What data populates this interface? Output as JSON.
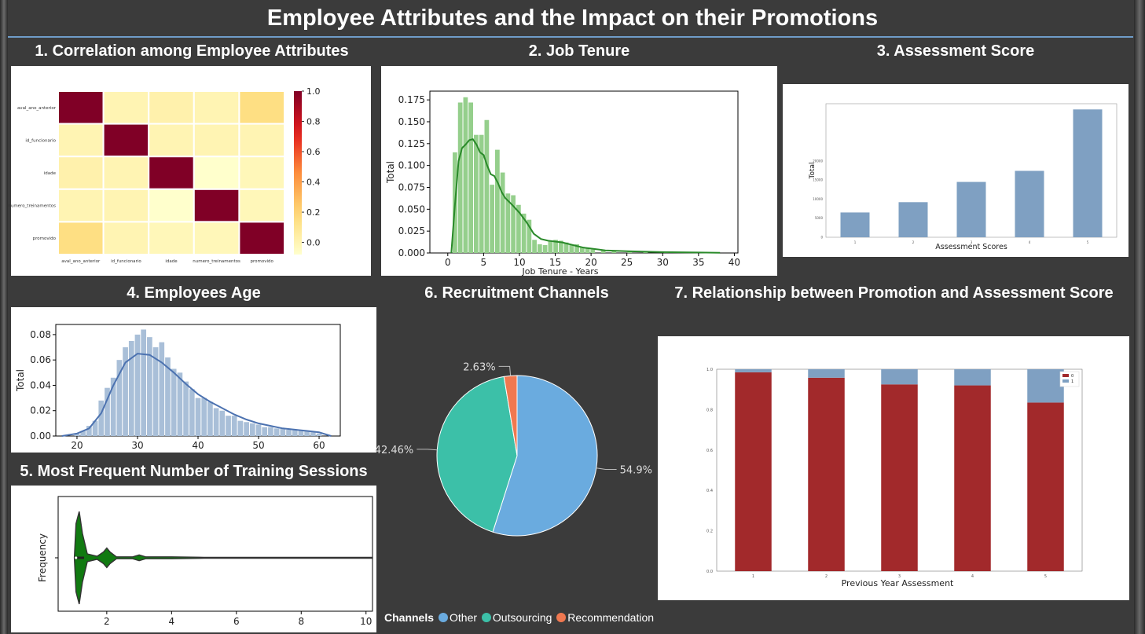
{
  "title": "Employee Attributes and the Impact on their Promotions",
  "panels": {
    "p1": "1. Correlation among Employee Attributes",
    "p2": "2. Job Tenure",
    "p3": "3. Assessment Score",
    "p4": "4. Employees Age",
    "p5": "5. Most Frequent Number of Training Sessions",
    "p6": "6. Recruitment Channels",
    "p7": "7. Relationship between Promotion and Assessment Score"
  },
  "colors": {
    "background": "#3b3b3b",
    "accent_line": "#6f9cc8",
    "heatmap_high": "#800026",
    "heatmap_low": "#ffffcc",
    "tenure_green": "#2a8a2a",
    "age_blue": "#4c72b0",
    "assessment_bar": "#7fa0c2",
    "promo_red": "#a2292b",
    "promo_blue": "#7fa0c2",
    "pie_other": "#6aabdf",
    "pie_outsourcing": "#3cc0a8",
    "pie_recommendation": "#f07850"
  },
  "chart_data": [
    {
      "id": "heatmap",
      "type": "heatmap",
      "row_labels": [
        "aval_ano_anterior",
        "id_funcionario",
        "idade",
        "numero_treinamentos",
        "promovido"
      ],
      "col_labels": [
        "aval_ano_anterior",
        "id_funcionario",
        "idade",
        "numero_treinamentos",
        "promovido"
      ],
      "values": [
        [
          1.0,
          0.0,
          0.02,
          0.0,
          0.15
        ],
        [
          0.0,
          1.0,
          0.0,
          0.0,
          0.0
        ],
        [
          0.02,
          0.0,
          1.0,
          -0.08,
          -0.02
        ],
        [
          0.0,
          0.0,
          -0.08,
          1.0,
          -0.02
        ],
        [
          0.15,
          0.0,
          -0.02,
          -0.02,
          1.0
        ]
      ],
      "colorbar_ticks": [
        "1.0",
        "0.8",
        "0.6",
        "0.4",
        "0.2",
        "0.0"
      ],
      "colorbar_range": [
        -0.08,
        1.0
      ]
    },
    {
      "id": "tenure",
      "type": "bar",
      "xlabel": "Job Tenure - Years",
      "ylabel": "Total",
      "xlim": [
        -2.5,
        40.5
      ],
      "ylim": [
        0,
        0.185
      ],
      "xticks": [
        "0",
        "5",
        "10",
        "15",
        "20",
        "25",
        "30",
        "35",
        "40"
      ],
      "yticks": [
        "0.000",
        "0.025",
        "0.050",
        "0.075",
        "0.100",
        "0.125",
        "0.150",
        "0.175"
      ],
      "bin_width": 0.74,
      "bins": [
        [
          1.0,
          0.115
        ],
        [
          1.74,
          0.172
        ],
        [
          2.48,
          0.178
        ],
        [
          3.22,
          0.172
        ],
        [
          3.96,
          0.135
        ],
        [
          4.7,
          0.135
        ],
        [
          5.44,
          0.152
        ],
        [
          6.18,
          0.078
        ],
        [
          6.92,
          0.118
        ],
        [
          7.66,
          0.092
        ],
        [
          8.4,
          0.068
        ],
        [
          9.14,
          0.066
        ],
        [
          9.88,
          0.055
        ],
        [
          10.62,
          0.045
        ],
        [
          11.36,
          0.038
        ],
        [
          12.1,
          0.015
        ],
        [
          12.84,
          0.01
        ],
        [
          13.58,
          0.009
        ],
        [
          14.32,
          0.013
        ],
        [
          15.06,
          0.015
        ],
        [
          15.8,
          0.014
        ],
        [
          16.54,
          0.012
        ],
        [
          17.28,
          0.009
        ],
        [
          18.02,
          0.01
        ],
        [
          18.76,
          0.007
        ],
        [
          19.5,
          0.006
        ],
        [
          20.24,
          0.004
        ],
        [
          21.7,
          0.003
        ],
        [
          23.2,
          0.002
        ],
        [
          25.4,
          0.0015
        ],
        [
          27.6,
          0.001
        ],
        [
          30.5,
          0.0008
        ],
        [
          33.4,
          0.0005
        ],
        [
          36.3,
          0.0004
        ]
      ],
      "kde": [
        [
          0.5,
          0.0
        ],
        [
          1.0,
          0.055
        ],
        [
          1.5,
          0.105
        ],
        [
          2.0,
          0.12
        ],
        [
          2.5,
          0.124
        ],
        [
          3.0,
          0.129
        ],
        [
          3.5,
          0.13
        ],
        [
          4.0,
          0.124
        ],
        [
          4.5,
          0.115
        ],
        [
          5.0,
          0.112
        ],
        [
          5.5,
          0.1
        ],
        [
          6.0,
          0.09
        ],
        [
          6.5,
          0.088
        ],
        [
          7.0,
          0.08
        ],
        [
          7.5,
          0.07
        ],
        [
          8.0,
          0.063
        ],
        [
          9.0,
          0.055
        ],
        [
          10.0,
          0.046
        ],
        [
          11.0,
          0.035
        ],
        [
          12.0,
          0.022
        ],
        [
          13.0,
          0.016
        ],
        [
          14.0,
          0.014
        ],
        [
          15.0,
          0.013
        ],
        [
          16.0,
          0.012
        ],
        [
          17.0,
          0.01
        ],
        [
          18.0,
          0.008
        ],
        [
          19.0,
          0.006
        ],
        [
          20.0,
          0.005
        ],
        [
          22.0,
          0.003
        ],
        [
          25.0,
          0.002
        ],
        [
          30.0,
          0.001
        ],
        [
          35.0,
          0.0005
        ],
        [
          38.0,
          0.0003
        ]
      ]
    },
    {
      "id": "assessment",
      "type": "bar",
      "xlabel": "Assessment Scores",
      "ylabel": "Total",
      "categories": [
        "1",
        "2",
        "3",
        "4",
        "5"
      ],
      "values": [
        6500,
        9200,
        14500,
        17400,
        33500
      ],
      "ylim": [
        0,
        35000
      ],
      "yticks": [
        "0",
        "5000",
        "10000",
        "15000",
        "20000"
      ]
    },
    {
      "id": "age",
      "type": "bar",
      "xlabel": "",
      "ylabel": "Total",
      "xlim": [
        16.5,
        63.5
      ],
      "ylim": [
        0,
        0.088
      ],
      "xticks": [
        "20",
        "30",
        "40",
        "50",
        "60"
      ],
      "yticks": [
        "0.00",
        "0.02",
        "0.04",
        "0.06",
        "0.08"
      ],
      "bin_width": 1.0,
      "bins": [
        [
          20,
          0.002
        ],
        [
          21,
          0.004
        ],
        [
          22,
          0.008
        ],
        [
          23,
          0.012
        ],
        [
          24,
          0.028
        ],
        [
          25,
          0.038
        ],
        [
          26,
          0.046
        ],
        [
          27,
          0.06
        ],
        [
          28,
          0.07
        ],
        [
          29,
          0.075
        ],
        [
          30,
          0.08
        ],
        [
          31,
          0.084
        ],
        [
          32,
          0.078
        ],
        [
          33,
          0.07
        ],
        [
          34,
          0.074
        ],
        [
          35,
          0.062
        ],
        [
          36,
          0.053
        ],
        [
          37,
          0.05
        ],
        [
          38,
          0.043
        ],
        [
          39,
          0.037
        ],
        [
          40,
          0.03
        ],
        [
          41,
          0.03
        ],
        [
          42,
          0.027
        ],
        [
          43,
          0.022
        ],
        [
          44,
          0.02
        ],
        [
          45,
          0.016
        ],
        [
          46,
          0.016
        ],
        [
          47,
          0.012
        ],
        [
          48,
          0.011
        ],
        [
          49,
          0.01
        ],
        [
          50,
          0.009
        ],
        [
          51,
          0.007
        ],
        [
          52,
          0.007
        ],
        [
          53,
          0.006
        ],
        [
          54,
          0.006
        ],
        [
          55,
          0.005
        ],
        [
          56,
          0.005
        ],
        [
          57,
          0.004
        ],
        [
          58,
          0.004
        ],
        [
          59,
          0.003
        ],
        [
          60,
          0.002
        ]
      ],
      "kde": [
        [
          17.5,
          0.0
        ],
        [
          20,
          0.002
        ],
        [
          22,
          0.006
        ],
        [
          24,
          0.018
        ],
        [
          26,
          0.04
        ],
        [
          28,
          0.058
        ],
        [
          30,
          0.065
        ],
        [
          32,
          0.064
        ],
        [
          34,
          0.058
        ],
        [
          36,
          0.05
        ],
        [
          38,
          0.041
        ],
        [
          40,
          0.033
        ],
        [
          42,
          0.027
        ],
        [
          44,
          0.022
        ],
        [
          46,
          0.017
        ],
        [
          48,
          0.013
        ],
        [
          50,
          0.01
        ],
        [
          52,
          0.008
        ],
        [
          54,
          0.006
        ],
        [
          56,
          0.005
        ],
        [
          58,
          0.004
        ],
        [
          60,
          0.003
        ],
        [
          62,
          0.0
        ]
      ]
    },
    {
      "id": "training",
      "type": "violin",
      "ylabel": "Frequency",
      "xlim": [
        0.5,
        10.2
      ],
      "xticks": [
        "2",
        "4",
        "6",
        "8",
        "10"
      ],
      "shape": [
        [
          1.0,
          0.0
        ],
        [
          1.05,
          0.7
        ],
        [
          1.15,
          0.95
        ],
        [
          1.25,
          0.5
        ],
        [
          1.4,
          0.08
        ],
        [
          1.7,
          0.03
        ],
        [
          1.9,
          0.12
        ],
        [
          2.0,
          0.2
        ],
        [
          2.1,
          0.12
        ],
        [
          2.3,
          0.02
        ],
        [
          2.8,
          0.02
        ],
        [
          3.0,
          0.06
        ],
        [
          3.2,
          0.02
        ],
        [
          4.0,
          0.02
        ],
        [
          5.0,
          0.01
        ],
        [
          10.2,
          0.01
        ]
      ]
    },
    {
      "id": "channels",
      "type": "pie",
      "legend_title": "Channels",
      "labels": [
        "Other",
        "Outsourcing",
        "Recommendation"
      ],
      "values": [
        54.9,
        42.46,
        2.63
      ],
      "value_labels": [
        "54.9%",
        "42.46%",
        "2.63%"
      ],
      "legend_position": "bottom"
    },
    {
      "id": "promotion",
      "type": "bar",
      "stacked": true,
      "normalized": true,
      "xlabel": "Previous Year Assessment",
      "categories": [
        "1",
        "2",
        "3",
        "4",
        "5"
      ],
      "series": [
        {
          "name": "0",
          "values": [
            0.985,
            0.958,
            0.925,
            0.92,
            0.835
          ]
        },
        {
          "name": "1",
          "values": [
            0.015,
            0.042,
            0.075,
            0.08,
            0.165
          ]
        }
      ],
      "ylim": [
        0,
        1.0
      ],
      "yticks": [
        "0.0",
        "0.2",
        "0.4",
        "0.6",
        "0.8",
        "1.0"
      ],
      "legend_position": "top-right"
    }
  ]
}
